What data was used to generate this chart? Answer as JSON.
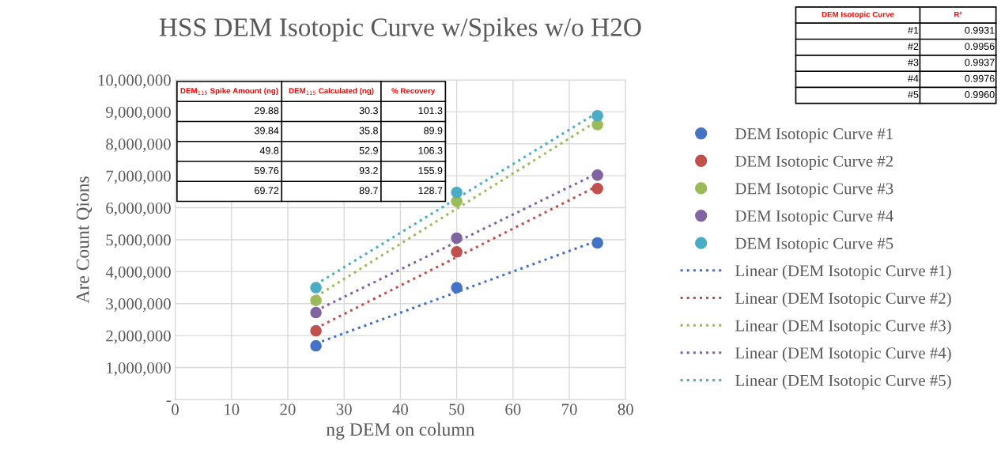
{
  "chart_data": {
    "type": "scatter",
    "title": "HSS DEM Isotopic Curve w/Spikes w/o H2O",
    "xlabel": "ng DEM on column",
    "ylabel": "Are Count Qions",
    "series": [
      {
        "name": "DEM Isotopic Curve #1",
        "color": "#4472c4",
        "x": [
          25,
          50,
          75
        ],
        "values": [
          1680000,
          3500000,
          4900000
        ]
      },
      {
        "name": "DEM Isotopic Curve #2",
        "color": "#c0504d",
        "x": [
          25,
          50,
          75
        ],
        "values": [
          2150000,
          4620000,
          6600000
        ]
      },
      {
        "name": "DEM Isotopic Curve #3",
        "color": "#9bbb59",
        "x": [
          25,
          50,
          75
        ],
        "values": [
          3100000,
          6200000,
          8600000
        ]
      },
      {
        "name": "DEM Isotopic Curve #4",
        "color": "#8064a2",
        "x": [
          25,
          50,
          75
        ],
        "values": [
          2720000,
          5050000,
          7020000
        ]
      },
      {
        "name": "DEM Isotopic Curve #5",
        "color": "#4bacc6",
        "x": [
          25,
          50,
          75
        ],
        "values": [
          3500000,
          6480000,
          8880000
        ]
      },
      {
        "name": "Linear (DEM Isotopic Curve #1)",
        "type": "line",
        "line_style": "dotted",
        "marker": "none",
        "color": "#4472c4",
        "x": [
          25,
          75
        ],
        "values": [
          1750000,
          4970000
        ]
      },
      {
        "name": "Linear (DEM Isotopic Curve #2)",
        "type": "line",
        "line_style": "dotted",
        "marker": "none",
        "color": "#c0504d",
        "x": [
          25,
          75
        ],
        "values": [
          2230000,
          6680000
        ]
      },
      {
        "name": "Linear (DEM Isotopic Curve #3)",
        "type": "line",
        "line_style": "dotted",
        "marker": "none",
        "color": "#9bbb59",
        "x": [
          25,
          75
        ],
        "values": [
          3220000,
          8720000
        ]
      },
      {
        "name": "Linear (DEM Isotopic Curve #4)",
        "type": "line",
        "line_style": "dotted",
        "marker": "none",
        "color": "#8064a2",
        "x": [
          25,
          75
        ],
        "values": [
          2780000,
          7080000
        ]
      },
      {
        "name": "Linear (DEM Isotopic Curve #5)",
        "type": "line",
        "line_style": "dotted",
        "marker": "none",
        "color": "#4bacc6",
        "x": [
          25,
          75
        ],
        "values": [
          3600000,
          8980000
        ]
      }
    ],
    "marker": "circle",
    "xlim": [
      0,
      80
    ],
    "xticks": [
      0,
      10,
      20,
      30,
      40,
      50,
      60,
      70,
      80
    ],
    "ylim": [
      0,
      10000000
    ],
    "yticks": [
      {
        "value": 0,
        "label": "-"
      },
      {
        "value": 1000000,
        "label": "1,000,000"
      },
      {
        "value": 2000000,
        "label": "2,000,000"
      },
      {
        "value": 3000000,
        "label": "3,000,000"
      },
      {
        "value": 4000000,
        "label": "4,000,000"
      },
      {
        "value": 5000000,
        "label": "5,000,000"
      },
      {
        "value": 6000000,
        "label": "6,000,000"
      },
      {
        "value": 7000000,
        "label": "7,000,000"
      },
      {
        "value": 8000000,
        "label": "8,000,000"
      },
      {
        "value": 9000000,
        "label": "9,000,000"
      },
      {
        "value": 10000000,
        "label": "10,000,000"
      }
    ],
    "grid": true,
    "legend": "right",
    "annotations": [
      "DEM$_{115}$ Spike Amount (ng)",
      "DEM$_{115}$ Calculated (ng)",
      "% Recovery",
      "29.88",
      "30.3",
      "101.3",
      "39.84",
      "35.8",
      "89.9",
      "49.8",
      "52.9",
      "106.3",
      "59.76",
      "93.2",
      "155.9",
      "69.72",
      "89.7",
      "128.7",
      "DEM Isotopic Curve",
      "R²",
      "#1",
      "0.9931",
      "#2",
      "0.9956",
      "#3",
      "0.9937",
      "#4",
      "0.9976",
      "#5",
      "0.9960"
    ]
  }
}
